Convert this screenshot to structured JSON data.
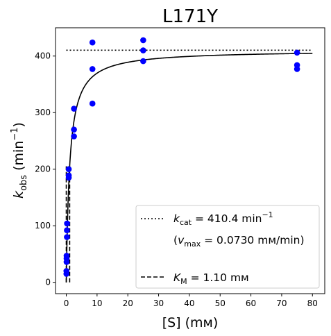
{
  "chart_data": {
    "type": "scatter",
    "title": "L171Y",
    "xlabel": "[S] (mм)",
    "ylabel": "k_obs (min^-1)",
    "xlim": [
      -3.5,
      84
    ],
    "ylim": [
      -20,
      450
    ],
    "x_ticks": [
      0,
      10,
      20,
      30,
      40,
      50,
      60,
      70,
      80
    ],
    "y_ticks": [
      0,
      100,
      200,
      300,
      400
    ],
    "grid": false,
    "legend_position": "lower-right",
    "colors": {
      "points": "#0000ff",
      "fit": "#000000"
    },
    "points": [
      {
        "x": 0.05,
        "y": 15
      },
      {
        "x": 0.05,
        "y": 20
      },
      {
        "x": 0.1,
        "y": 36
      },
      {
        "x": 0.1,
        "y": 42
      },
      {
        "x": 0.1,
        "y": 47
      },
      {
        "x": 0.2,
        "y": 80
      },
      {
        "x": 0.2,
        "y": 92
      },
      {
        "x": 0.25,
        "y": 104
      },
      {
        "x": 0.8,
        "y": 185
      },
      {
        "x": 0.8,
        "y": 189
      },
      {
        "x": 0.8,
        "y": 200
      },
      {
        "x": 2.5,
        "y": 258
      },
      {
        "x": 2.5,
        "y": 270
      },
      {
        "x": 2.5,
        "y": 307
      },
      {
        "x": 8.5,
        "y": 316
      },
      {
        "x": 8.5,
        "y": 377
      },
      {
        "x": 8.5,
        "y": 424
      },
      {
        "x": 25,
        "y": 391
      },
      {
        "x": 25,
        "y": 410
      },
      {
        "x": 25,
        "y": 428
      },
      {
        "x": 75,
        "y": 377
      },
      {
        "x": 75,
        "y": 384
      },
      {
        "x": 75,
        "y": 406
      }
    ],
    "fit": {
      "kcat": 410.4,
      "KM": 1.1,
      "x_max": 80
    },
    "legend": {
      "kcat_label": "k",
      "kcat_sub": "cat",
      "kcat_value": " = 410.4 min",
      "kcat_exp": "−1",
      "vmax_open": "(",
      "vmax_label": "v",
      "vmax_sub": "max",
      "vmax_value": " = 0.0730 mм/min)",
      "km_label": "K",
      "km_sub": "M",
      "km_value": " = 1.10 mм"
    },
    "axis_text": {
      "xlabel": "[S] (mм)",
      "ylabel_k": "k",
      "ylabel_sub": "obs",
      "ylabel_rest": " (min",
      "ylabel_exp": "−1",
      "ylabel_close": ")"
    }
  }
}
